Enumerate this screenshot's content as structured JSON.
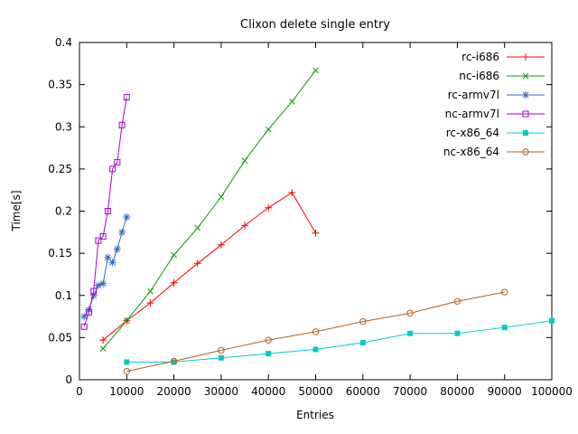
{
  "chart_data": {
    "type": "line",
    "title": "Clixon delete single entry",
    "xlabel": "Entries",
    "ylabel": "Time[s]",
    "xlim": [
      0,
      100000
    ],
    "ylim": [
      0,
      0.4
    ],
    "xticks": [
      0,
      10000,
      20000,
      30000,
      40000,
      50000,
      60000,
      70000,
      80000,
      90000,
      100000
    ],
    "xtick_labels": [
      "0",
      "10000",
      "20000",
      "30000",
      "40000",
      "50000",
      "60000",
      "70000",
      "80000",
      "90000",
      "100000"
    ],
    "yticks": [
      0,
      0.05,
      0.1,
      0.15,
      0.2,
      0.25,
      0.3,
      0.35,
      0.4
    ],
    "ytick_labels": [
      "0",
      "0.05",
      "0.1",
      "0.15",
      "0.2",
      "0.25",
      "0.3",
      "0.35",
      "0.4"
    ],
    "grid": false,
    "legend_position": "top-right-inside",
    "background_color": "#ffffff",
    "axis_color": "#000000",
    "series": [
      {
        "name": "rc-i686",
        "color": "#ff0000",
        "marker": "plus",
        "x": [
          5000,
          10000,
          15000,
          20000,
          25000,
          30000,
          35000,
          40000,
          45000,
          50000
        ],
        "y": [
          0.047,
          0.07,
          0.091,
          0.115,
          0.138,
          0.16,
          0.183,
          0.204,
          0.222,
          0.174
        ]
      },
      {
        "name": "nc-i686",
        "color": "#00a000",
        "marker": "cross",
        "x": [
          5000,
          10000,
          15000,
          20000,
          25000,
          30000,
          35000,
          40000,
          45000,
          50000
        ],
        "y": [
          0.037,
          0.07,
          0.105,
          0.148,
          0.18,
          0.217,
          0.26,
          0.297,
          0.33,
          0.367
        ]
      },
      {
        "name": "rc-armv7l",
        "color": "#3366cc",
        "marker": "asterisk",
        "x": [
          1000,
          2000,
          3000,
          4000,
          5000,
          6000,
          7000,
          8000,
          9000,
          10000
        ],
        "y": [
          0.075,
          0.083,
          0.1,
          0.112,
          0.114,
          0.145,
          0.139,
          0.155,
          0.175,
          0.193
        ]
      },
      {
        "name": "nc-armv7l",
        "color": "#aa00cc",
        "marker": "square-open",
        "x": [
          1000,
          2000,
          3000,
          4000,
          5000,
          6000,
          7000,
          8000,
          9000,
          10000
        ],
        "y": [
          0.063,
          0.08,
          0.105,
          0.165,
          0.17,
          0.2,
          0.25,
          0.258,
          0.302,
          0.335
        ]
      },
      {
        "name": "rc-x86_64",
        "color": "#00cccc",
        "marker": "square-filled",
        "x": [
          10000,
          20000,
          30000,
          40000,
          50000,
          60000,
          70000,
          80000,
          90000,
          100000
        ],
        "y": [
          0.021,
          0.021,
          0.026,
          0.031,
          0.036,
          0.044,
          0.055,
          0.055,
          0.062,
          0.07
        ]
      },
      {
        "name": "nc-x86_64",
        "color": "#b45f1d",
        "marker": "circle-open",
        "x": [
          10000,
          20000,
          30000,
          40000,
          50000,
          60000,
          70000,
          80000,
          90000
        ],
        "y": [
          0.01,
          0.022,
          0.035,
          0.047,
          0.057,
          0.069,
          0.079,
          0.093,
          0.104
        ]
      }
    ]
  }
}
